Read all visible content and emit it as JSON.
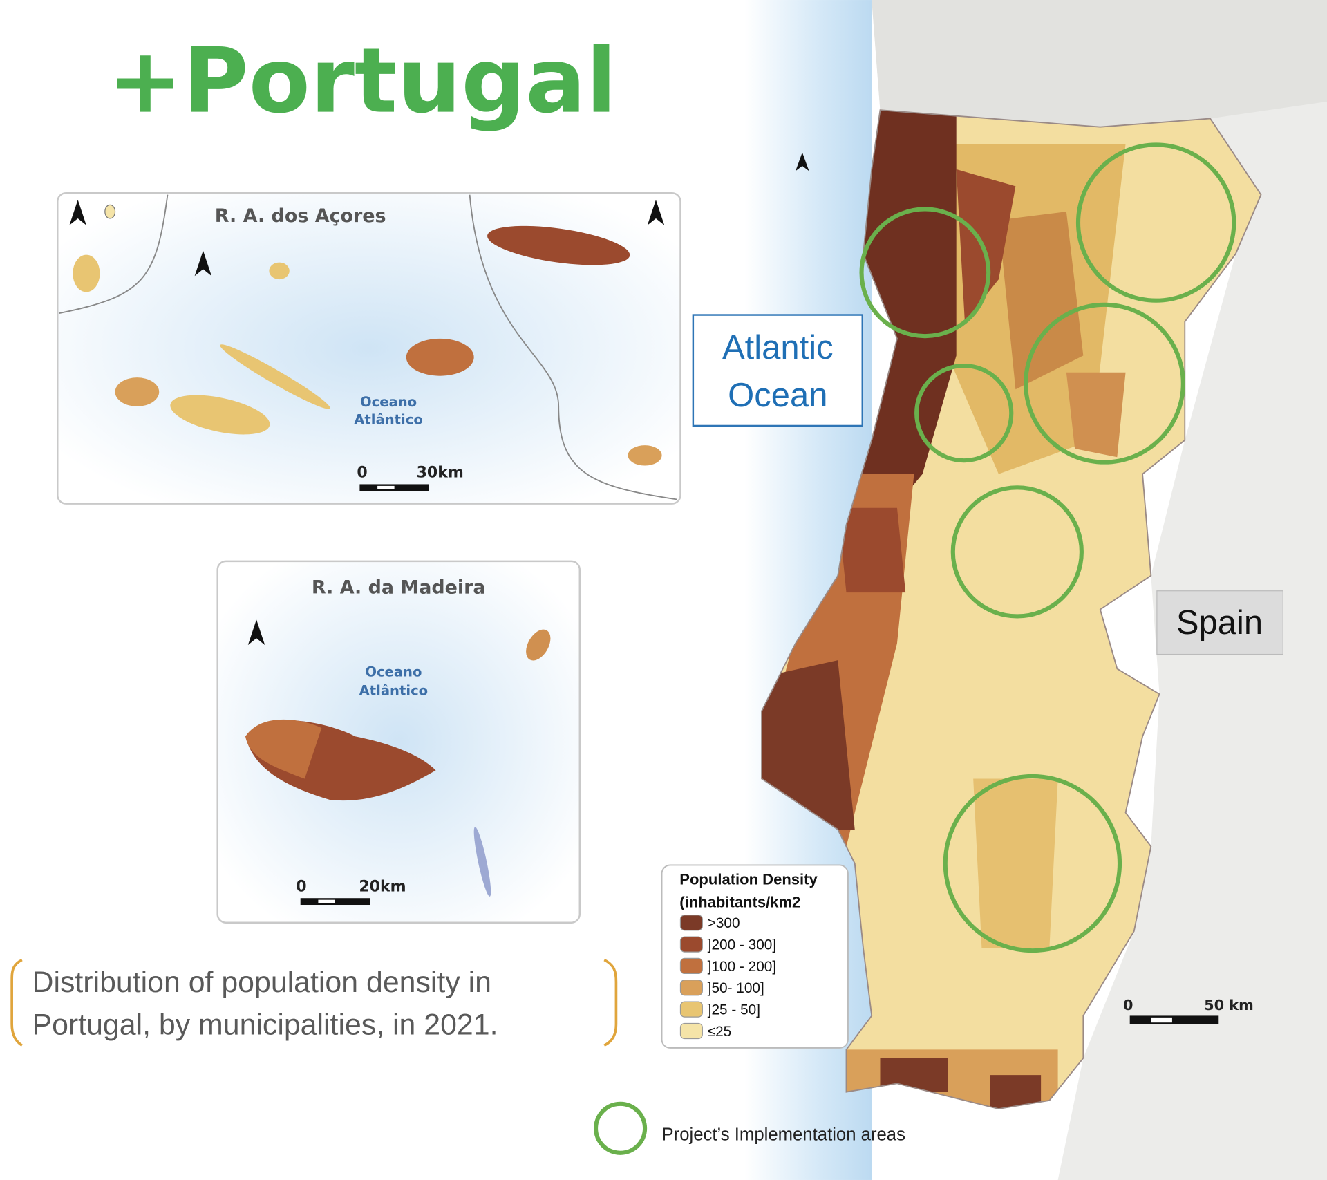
{
  "title": "+Portugal",
  "azores": {
    "title": "R. A. dos Açores",
    "ocean": [
      "Oceano",
      "Atlântico"
    ],
    "scale": [
      "0",
      "30km"
    ]
  },
  "madeira": {
    "title": "R. A. da Madeira",
    "ocean": [
      "Oceano",
      "Atlântico"
    ],
    "scale": [
      "0",
      "20km"
    ]
  },
  "atlantic_label": [
    "Atlantic",
    "Ocean"
  ],
  "spain_label": "Spain",
  "legend": {
    "title": [
      "Population Density",
      "(inhabitants/km2"
    ],
    "items": [
      {
        "label": ">300",
        "color": "#7b3a27"
      },
      {
        "label": "]200 - 300]",
        "color": "#9b4a2e"
      },
      {
        "label": "]100 - 200]",
        "color": "#c0703e"
      },
      {
        "label": "]50- 100]",
        "color": "#d9a05a"
      },
      {
        "label": "]25 - 50]",
        "color": "#e8c572"
      },
      {
        "label": "≤25",
        "color": "#f5e4a8"
      }
    ]
  },
  "scale": [
    "0",
    "50 km"
  ],
  "caption": [
    "Distribution of population density in",
    "Portugal, by municipalities, in 2021."
  ],
  "project_areas_label": "Project’s Implementation areas"
}
